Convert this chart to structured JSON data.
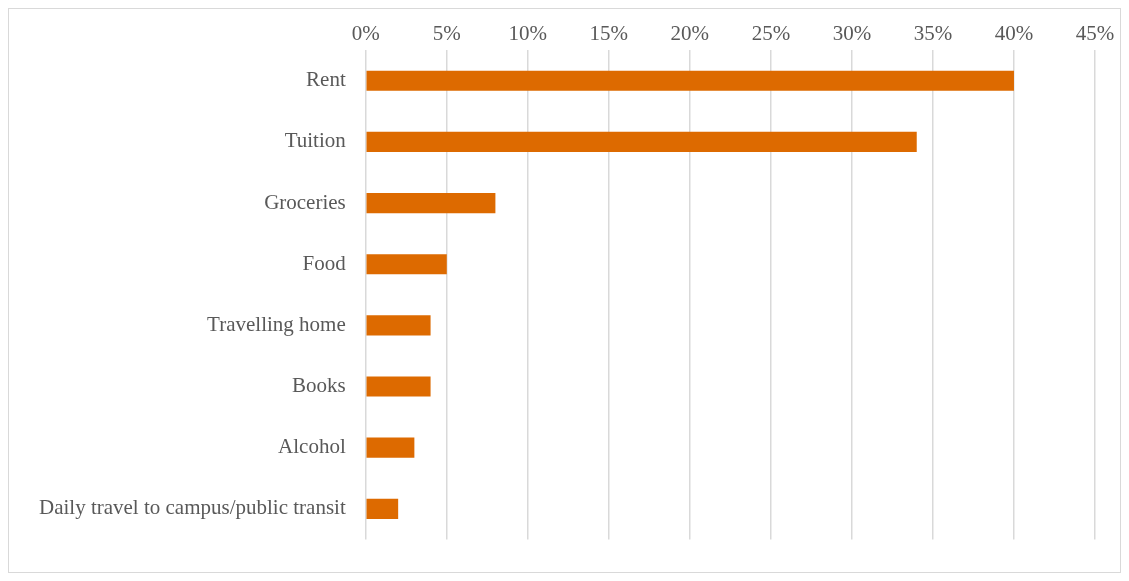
{
  "chart_data": {
    "type": "bar",
    "orientation": "horizontal",
    "categories": [
      "Rent",
      "Tuition",
      "Groceries",
      "Food",
      "Travelling home",
      "Books",
      "Alcohol",
      "Daily travel to campus/public transit"
    ],
    "values": [
      40,
      34,
      8,
      5,
      4,
      4,
      3,
      2
    ],
    "color": "#dd6a00",
    "xlim": [
      0,
      45
    ],
    "xticks": [
      {
        "value": 0,
        "label": "0%"
      },
      {
        "value": 5,
        "label": "5%"
      },
      {
        "value": 10,
        "label": "10%"
      },
      {
        "value": 15,
        "label": "15%"
      },
      {
        "value": 20,
        "label": "20%"
      },
      {
        "value": 25,
        "label": "25%"
      },
      {
        "value": 30,
        "label": "30%"
      },
      {
        "value": 35,
        "label": "35%"
      },
      {
        "value": 40,
        "label": "40%"
      },
      {
        "value": 45,
        "label": "45%"
      }
    ],
    "grid": "x",
    "legend": false
  }
}
